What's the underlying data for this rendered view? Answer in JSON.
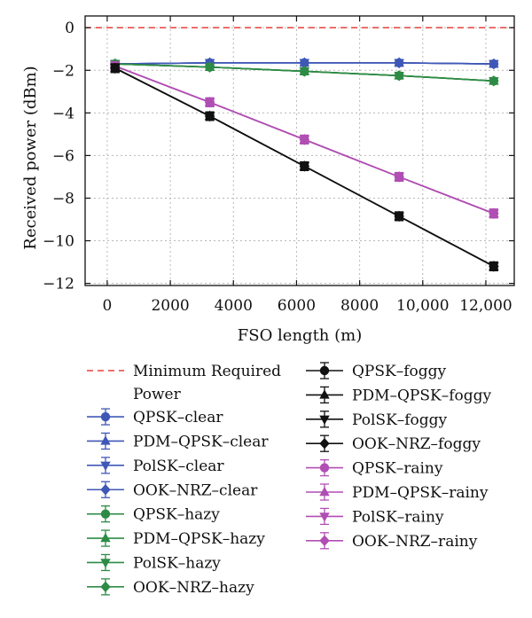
{
  "chart_data": {
    "type": "line",
    "xlabel": "FSO length (m)",
    "ylabel": "Received power (dBm)",
    "xlim": [
      -700,
      12900
    ],
    "ylim": [
      -12.1,
      0.55
    ],
    "xticks": [
      0,
      2000,
      4000,
      6000,
      8000,
      10000,
      12000
    ],
    "xtick_labels": [
      "0",
      "2000",
      "4000",
      "6000",
      "8000",
      "10,000",
      "12,000"
    ],
    "yticks": [
      0,
      -2,
      -4,
      -6,
      -8,
      -10,
      -12
    ],
    "ytick_labels": [
      "0",
      "−2",
      "−4",
      "−6",
      "−8",
      "−10",
      "−12"
    ],
    "grid": true,
    "legend_position": "below-plot-two-columns",
    "reference_line": {
      "name_line1": "Minimum Required",
      "name_line2": "Power",
      "y": 0,
      "color": "#e8413a",
      "style": "dashed"
    },
    "x": [
      250,
      3250,
      6250,
      9250,
      12250
    ],
    "series": [
      {
        "name": "QPSK–clear",
        "color": "#3f58b6",
        "marker": "circle",
        "values": [
          -1.7,
          -1.65,
          -1.65,
          -1.65,
          -1.7
        ],
        "err": 0.15
      },
      {
        "name": "PDM–QPSK–clear",
        "color": "#3f58b6",
        "marker": "triangle-up",
        "values": [
          -1.7,
          -1.65,
          -1.65,
          -1.65,
          -1.7
        ],
        "err": 0.15
      },
      {
        "name": "PolSK–clear",
        "color": "#3f58b6",
        "marker": "triangle-down",
        "values": [
          -1.7,
          -1.65,
          -1.65,
          -1.65,
          -1.7
        ],
        "err": 0.15
      },
      {
        "name": "OOK–NRZ–clear",
        "color": "#3f58b6",
        "marker": "diamond",
        "values": [
          -1.7,
          -1.65,
          -1.65,
          -1.65,
          -1.7
        ],
        "err": 0.15
      },
      {
        "name": "QPSK–hazy",
        "color": "#2e8b45",
        "marker": "circle",
        "values": [
          -1.7,
          -1.85,
          -2.05,
          -2.25,
          -2.5
        ],
        "err": 0.15
      },
      {
        "name": "PDM–QPSK–hazy",
        "color": "#2e8b45",
        "marker": "triangle-up",
        "values": [
          -1.7,
          -1.85,
          -2.05,
          -2.25,
          -2.5
        ],
        "err": 0.15
      },
      {
        "name": "PolSK–hazy",
        "color": "#2e8b45",
        "marker": "triangle-down",
        "values": [
          -1.7,
          -1.85,
          -2.05,
          -2.25,
          -2.5
        ],
        "err": 0.15
      },
      {
        "name": "OOK–NRZ–hazy",
        "color": "#2e8b45",
        "marker": "diamond",
        "values": [
          -1.7,
          -1.85,
          -2.05,
          -2.25,
          -2.5
        ],
        "err": 0.15
      },
      {
        "name": "QPSK–foggy",
        "color": "#111111",
        "marker": "circle",
        "values": [
          -1.9,
          -4.15,
          -6.5,
          -8.85,
          -11.2
        ],
        "err": 0.2
      },
      {
        "name": "PDM–QPSK–foggy",
        "color": "#111111",
        "marker": "triangle-up",
        "values": [
          -1.9,
          -4.15,
          -6.5,
          -8.85,
          -11.2
        ],
        "err": 0.2
      },
      {
        "name": "PolSK–foggy",
        "color": "#111111",
        "marker": "triangle-down",
        "values": [
          -1.9,
          -4.15,
          -6.5,
          -8.85,
          -11.2
        ],
        "err": 0.2
      },
      {
        "name": "OOK–NRZ–foggy",
        "color": "#111111",
        "marker": "diamond",
        "values": [
          -1.9,
          -4.15,
          -6.5,
          -8.85,
          -11.2
        ],
        "err": 0.2
      },
      {
        "name": "QPSK–rainy",
        "color": "#b04eb3",
        "marker": "circle",
        "values": [
          -1.8,
          -3.5,
          -5.25,
          -7.0,
          -8.72
        ],
        "err": 0.2
      },
      {
        "name": "PDM–QPSK–rainy",
        "color": "#b04eb3",
        "marker": "triangle-up",
        "values": [
          -1.8,
          -3.5,
          -5.25,
          -7.0,
          -8.72
        ],
        "err": 0.2
      },
      {
        "name": "PolSK–rainy",
        "color": "#b04eb3",
        "marker": "triangle-down",
        "values": [
          -1.8,
          -3.5,
          -5.25,
          -7.0,
          -8.72
        ],
        "err": 0.2
      },
      {
        "name": "OOK–NRZ–rainy",
        "color": "#b04eb3",
        "marker": "diamond",
        "values": [
          -1.8,
          -3.5,
          -5.25,
          -7.0,
          -8.72
        ],
        "err": 0.2
      }
    ]
  }
}
